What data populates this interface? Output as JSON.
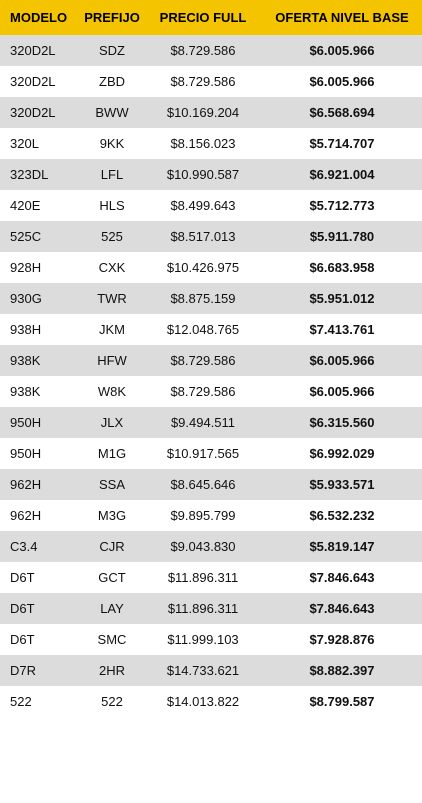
{
  "table": {
    "headers": [
      "MODELO",
      "PREFIJO",
      "PRECIO FULL",
      "OFERTA NIVEL BASE"
    ],
    "rows": [
      [
        "320D2L",
        "SDZ",
        "$8.729.586",
        "$6.005.966"
      ],
      [
        "320D2L",
        "ZBD",
        "$8.729.586",
        "$6.005.966"
      ],
      [
        "320D2L",
        "BWW",
        "$10.169.204",
        "$6.568.694"
      ],
      [
        "320L",
        "9KK",
        "$8.156.023",
        "$5.714.707"
      ],
      [
        "323DL",
        "LFL",
        "$10.990.587",
        "$6.921.004"
      ],
      [
        "420E",
        "HLS",
        "$8.499.643",
        "$5.712.773"
      ],
      [
        "525C",
        "525",
        "$8.517.013",
        "$5.911.780"
      ],
      [
        "928H",
        "CXK",
        "$10.426.975",
        "$6.683.958"
      ],
      [
        "930G",
        "TWR",
        "$8.875.159",
        "$5.951.012"
      ],
      [
        "938H",
        "JKM",
        "$12.048.765",
        "$7.413.761"
      ],
      [
        "938K",
        "HFW",
        "$8.729.586",
        "$6.005.966"
      ],
      [
        "938K",
        "W8K",
        "$8.729.586",
        "$6.005.966"
      ],
      [
        "950H",
        "JLX",
        "$9.494.511",
        "$6.315.560"
      ],
      [
        "950H",
        "M1G",
        "$10.917.565",
        "$6.992.029"
      ],
      [
        "962H",
        "SSA",
        "$8.645.646",
        "$5.933.571"
      ],
      [
        "962H",
        "M3G",
        "$9.895.799",
        "$6.532.232"
      ],
      [
        "C3.4",
        "CJR",
        "$9.043.830",
        "$5.819.147"
      ],
      [
        "D6T",
        "GCT",
        "$11.896.311",
        "$7.846.643"
      ],
      [
        "D6T",
        "LAY",
        "$11.896.311",
        "$7.846.643"
      ],
      [
        "D6T",
        "SMC",
        "$11.999.103",
        "$7.928.876"
      ],
      [
        "D7R",
        "2HR",
        "$14.733.621",
        "$8.882.397"
      ],
      [
        "522",
        "522",
        "$14.013.822",
        "$8.799.587"
      ]
    ]
  }
}
